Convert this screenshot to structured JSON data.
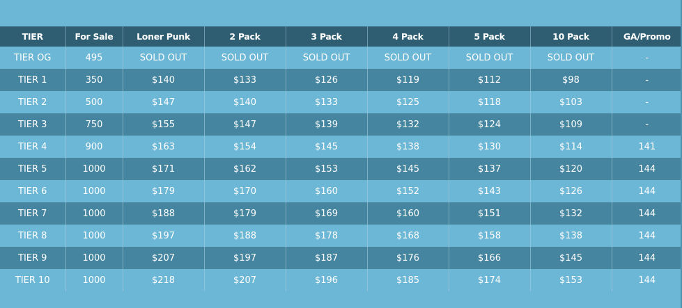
{
  "table": {
    "headers": [
      "TIER",
      "For Sale",
      "Loner Punk",
      "2 Pack",
      "3 Pack",
      "4 Pack",
      "5 Pack",
      "10 Pack",
      "GA/Promo"
    ],
    "rows": [
      [
        "TIER OG",
        "495",
        "SOLD OUT",
        "SOLD OUT",
        "SOLD OUT",
        "SOLD OUT",
        "SOLD OUT",
        "SOLD OUT",
        "-"
      ],
      [
        "TIER 1",
        "350",
        "$140",
        "$133",
        "$126",
        "$119",
        "$112",
        "$98",
        "-"
      ],
      [
        "TIER 2",
        "500",
        "$147",
        "$140",
        "$133",
        "$125",
        "$118",
        "$103",
        "-"
      ],
      [
        "TIER 3",
        "750",
        "$155",
        "$147",
        "$139",
        "$132",
        "$124",
        "$109",
        "-"
      ],
      [
        "TIER 4",
        "900",
        "$163",
        "$154",
        "$145",
        "$138",
        "$130",
        "$114",
        "141"
      ],
      [
        "TIER 5",
        "1000",
        "$171",
        "$162",
        "$153",
        "$145",
        "$137",
        "$120",
        "144"
      ],
      [
        "TIER 6",
        "1000",
        "$179",
        "$170",
        "$160",
        "$152",
        "$143",
        "$126",
        "144"
      ],
      [
        "TIER 7",
        "1000",
        "$188",
        "$179",
        "$169",
        "$160",
        "$151",
        "$132",
        "144"
      ],
      [
        "TIER 8",
        "1000",
        "$197",
        "$188",
        "$178",
        "$168",
        "$158",
        "$138",
        "144"
      ],
      [
        "TIER 9",
        "1000",
        "$207",
        "$197",
        "$187",
        "$176",
        "$166",
        "$145",
        "144"
      ],
      [
        "TIER 10",
        "1000",
        "$218",
        "$207",
        "$196",
        "$185",
        "$174",
        "$153",
        "144"
      ]
    ]
  },
  "colors": {
    "background": "#6cb6d6",
    "header": "#2f5e72",
    "row_light": "#6cb6d6",
    "row_dark": "#4585a0",
    "text": "#ffffff"
  }
}
